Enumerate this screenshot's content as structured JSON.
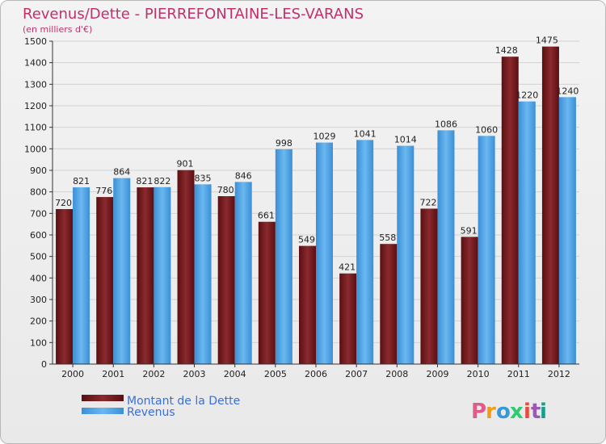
{
  "chart_data": {
    "type": "bar",
    "title": "Revenus/Dette - PIERREFONTAINE-LES-VARANS",
    "subtitle": "(en milliers d'€)",
    "categories": [
      "2000",
      "2001",
      "2002",
      "2003",
      "2004",
      "2005",
      "2006",
      "2007",
      "2008",
      "2009",
      "2010",
      "2011",
      "2012"
    ],
    "series": [
      {
        "name": "Montant de la Dette",
        "color": "#7a1e22",
        "values": [
          720,
          776,
          821,
          901,
          780,
          661,
          549,
          421,
          558,
          722,
          591,
          1428,
          1475
        ]
      },
      {
        "name": "Revenus",
        "color": "#4aa3e6",
        "values": [
          821,
          864,
          822,
          835,
          846,
          998,
          1029,
          1041,
          1014,
          1086,
          1060,
          1220,
          1240
        ]
      }
    ],
    "ylim": [
      0,
      1500
    ],
    "yticks": [
      0,
      100,
      200,
      300,
      400,
      500,
      600,
      700,
      800,
      900,
      1000,
      1100,
      1200,
      1300,
      1400,
      1500
    ],
    "grid": true,
    "legend_position": "bottom-left"
  },
  "branding": {
    "logo_letters": [
      "P",
      "r",
      "o",
      "x",
      "i",
      "t",
      "i"
    ],
    "logo_colors": [
      "#e05a8a",
      "#f39c12",
      "#3498db",
      "#2ecc71",
      "#e74c3c",
      "#9b59b6",
      "#16a085"
    ]
  }
}
